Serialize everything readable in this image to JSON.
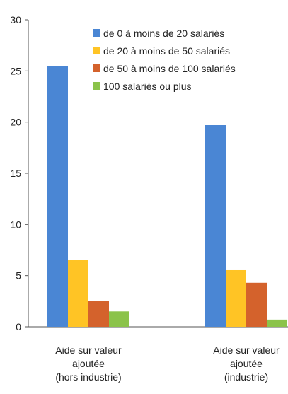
{
  "chart_data": {
    "type": "bar",
    "categories": [
      [
        "Aide sur valeur",
        "ajoutée",
        "(hors industrie)"
      ],
      [
        "Aide sur valeur",
        "ajoutée",
        "(industrie)"
      ]
    ],
    "series": [
      {
        "name": "de 0 à moins de 20 salariés",
        "color": "#4a86d4",
        "values": [
          25.5,
          19.7
        ]
      },
      {
        "name": "de 20 à moins de 50 salariés",
        "color": "#ffc425",
        "values": [
          6.5,
          5.6
        ]
      },
      {
        "name": "de 50 à moins de 100 salariés",
        "color": "#d4622c",
        "values": [
          2.5,
          4.3
        ]
      },
      {
        "name": "100 salariés ou plus",
        "color": "#8bc34a",
        "values": [
          1.5,
          0.7
        ]
      }
    ],
    "ylim": [
      0,
      30
    ],
    "yticks": [
      0,
      5,
      10,
      15,
      20,
      25,
      30
    ],
    "grid": false,
    "legend_position": "top-right"
  }
}
